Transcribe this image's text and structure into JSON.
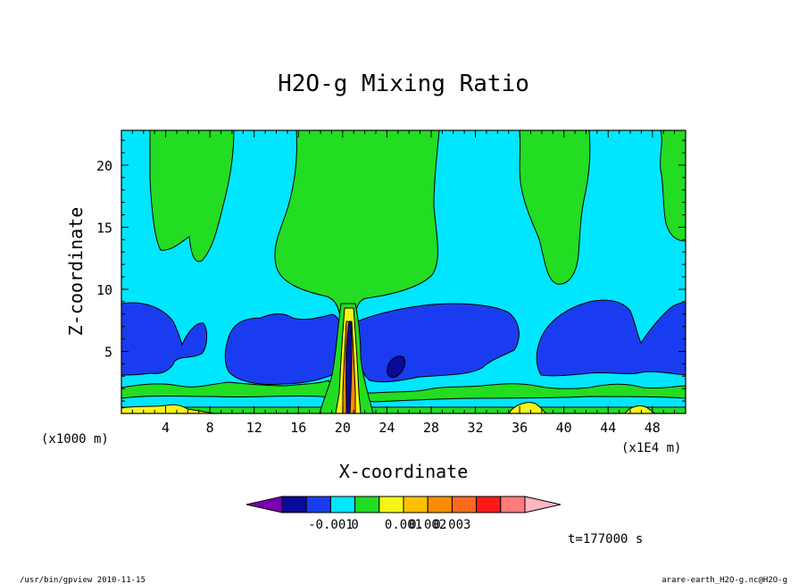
{
  "chart_data": {
    "type": "contour",
    "title": "H2O-g Mixing Ratio",
    "xlabel": "X-coordinate",
    "ylabel": "Z-coordinate",
    "x_unit_left": "(x1000 m)",
    "x_unit_right": "(x1E4 m)",
    "xlim": [
      0,
      51
    ],
    "ylim": [
      0,
      22.8
    ],
    "x_ticks": [
      4,
      8,
      12,
      16,
      20,
      24,
      28,
      32,
      36,
      40,
      44,
      48
    ],
    "y_ticks": [
      5,
      10,
      15,
      20
    ],
    "colorbar": {
      "colors": [
        "#7a00b0",
        "#0a0a9a",
        "#1a3cf0",
        "#00e6ff",
        "#22dd22",
        "#f5f518",
        "#ffc000",
        "#ff8c00",
        "#ff6a20",
        "#ff1a1a",
        "#ff7a7a",
        "#ffb6c1"
      ],
      "labels": [
        "-0.001",
        "0",
        "0.001",
        "0.002",
        "0.003"
      ]
    },
    "time_label": "t=177000 s",
    "grid": false
  },
  "colors": {
    "cyan": "#00e6ff",
    "green": "#22dd22",
    "blue": "#1a3cf0",
    "dark_blue": "#0a0a9a",
    "yellow": "#f5f518",
    "orange": "#ff8c00",
    "red": "#ff1a1a"
  },
  "footer": {
    "left": "/usr/bin/gpview  2010-11-15",
    "right": "arare-earth_H2O-g.nc@H2O-g"
  }
}
